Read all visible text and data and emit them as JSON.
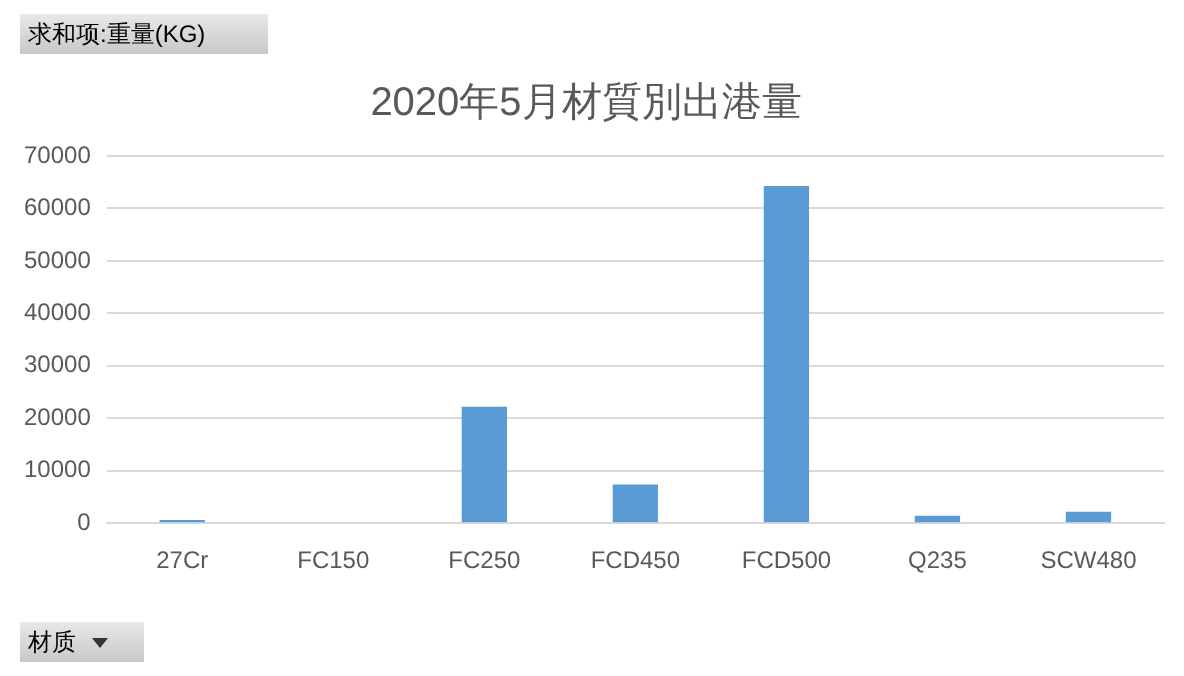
{
  "chart_data": {
    "type": "bar",
    "title": "2020年5月材質別出港量",
    "categories": [
      "27Cr",
      "FC150",
      "FC250",
      "FCD450",
      "FCD500",
      "Q235",
      "SCW480"
    ],
    "values": [
      600,
      0,
      22200,
      7400,
      64300,
      1400,
      2200
    ],
    "color": "#5b9bd5",
    "ylim": [
      0,
      70000
    ],
    "yticks": [
      0,
      10000,
      20000,
      30000,
      40000,
      50000,
      60000,
      70000
    ],
    "grid": "y",
    "legend": false,
    "annotations": [
      "求和项:重量(KG)",
      "材质"
    ]
  }
}
